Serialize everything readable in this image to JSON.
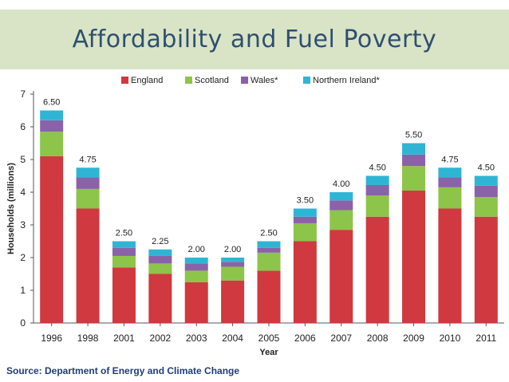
{
  "slide": {
    "title": "Affordability and Fuel Poverty",
    "source": "Source: Department of Energy and Climate Change",
    "title_band_color": "#d9e4c7",
    "title_color": "#2f4f6e",
    "source_color": "#1f3c7a"
  },
  "chart_data": {
    "type": "bar",
    "stacked": true,
    "categories": [
      "1996",
      "1998",
      "2001",
      "2002",
      "2003",
      "2004",
      "2005",
      "2006",
      "2007",
      "2008",
      "2009",
      "2010",
      "2011"
    ],
    "series": [
      {
        "name": "England",
        "color": "#d0393f",
        "values": [
          5.1,
          3.5,
          1.7,
          1.5,
          1.25,
          1.3,
          1.6,
          2.5,
          2.85,
          3.25,
          4.05,
          3.5,
          3.25
        ]
      },
      {
        "name": "Scotland",
        "color": "#8dc44a",
        "values": [
          0.75,
          0.6,
          0.35,
          0.32,
          0.35,
          0.42,
          0.55,
          0.55,
          0.6,
          0.65,
          0.75,
          0.65,
          0.6
        ]
      },
      {
        "name": "Wales*",
        "color": "#8a62a8",
        "values": [
          0.35,
          0.35,
          0.25,
          0.23,
          0.22,
          0.15,
          0.15,
          0.2,
          0.3,
          0.32,
          0.35,
          0.3,
          0.35
        ]
      },
      {
        "name": "Northern Ireland*",
        "color": "#2fb5d4",
        "values": [
          0.3,
          0.3,
          0.2,
          0.2,
          0.18,
          0.13,
          0.2,
          0.25,
          0.25,
          0.28,
          0.35,
          0.3,
          0.3
        ]
      }
    ],
    "totals": [
      "6.50",
      "4.75",
      "2.50",
      "2.25",
      "2.00",
      "2.00",
      "2.50",
      "3.50",
      "4.00",
      "4.50",
      "5.50",
      "4.75",
      "4.50"
    ],
    "xlabel": "Year",
    "ylabel": "Households (millions)",
    "ylim": [
      0,
      7
    ],
    "yticks": [
      0,
      1,
      2,
      3,
      4,
      5,
      6,
      7
    ],
    "legend_position": "top",
    "grid": false
  }
}
